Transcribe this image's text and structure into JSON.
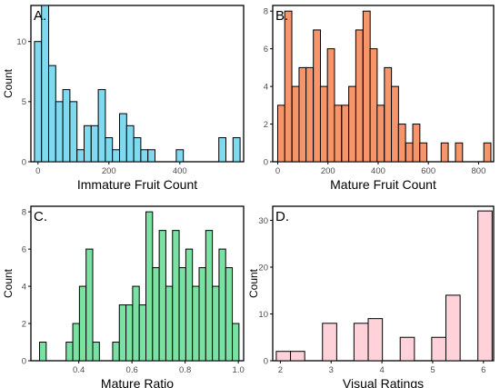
{
  "chart_data": [
    {
      "type": "bar",
      "panel": "A.",
      "title": "",
      "xlabel": "Immature Fruit Count",
      "ylabel": "Count",
      "color": "#7FD9EF",
      "xlim": [
        -20,
        580
      ],
      "ylim": [
        0,
        13
      ],
      "xticks": [
        0,
        200,
        400
      ],
      "yticks": [
        0,
        5,
        10
      ],
      "bin_width": 20,
      "bins": [
        {
          "x": 0,
          "count": 10
        },
        {
          "x": 20,
          "count": 13
        },
        {
          "x": 40,
          "count": 8
        },
        {
          "x": 60,
          "count": 5
        },
        {
          "x": 80,
          "count": 6
        },
        {
          "x": 100,
          "count": 5
        },
        {
          "x": 120,
          "count": 1
        },
        {
          "x": 140,
          "count": 3
        },
        {
          "x": 160,
          "count": 3
        },
        {
          "x": 180,
          "count": 6
        },
        {
          "x": 200,
          "count": 2
        },
        {
          "x": 220,
          "count": 1
        },
        {
          "x": 240,
          "count": 4
        },
        {
          "x": 260,
          "count": 3
        },
        {
          "x": 280,
          "count": 2
        },
        {
          "x": 300,
          "count": 1
        },
        {
          "x": 320,
          "count": 1
        },
        {
          "x": 400,
          "count": 1
        },
        {
          "x": 520,
          "count": 2
        },
        {
          "x": 560,
          "count": 2
        }
      ]
    },
    {
      "type": "bar",
      "panel": "B.",
      "title": "",
      "xlabel": "Mature Fruit Count",
      "ylabel": "",
      "color": "#F7956A",
      "xlim": [
        -20,
        860
      ],
      "ylim": [
        0,
        8.3
      ],
      "xticks": [
        0,
        200,
        400,
        600,
        800
      ],
      "yticks": [
        0,
        2,
        4,
        6,
        8
      ],
      "bin_width": 28.3,
      "bins": [
        {
          "x": 14,
          "count": 3
        },
        {
          "x": 42,
          "count": 8
        },
        {
          "x": 71,
          "count": 4
        },
        {
          "x": 99,
          "count": 5
        },
        {
          "x": 127,
          "count": 5
        },
        {
          "x": 156,
          "count": 7
        },
        {
          "x": 184,
          "count": 4
        },
        {
          "x": 212,
          "count": 6
        },
        {
          "x": 240,
          "count": 3
        },
        {
          "x": 269,
          "count": 3
        },
        {
          "x": 297,
          "count": 4
        },
        {
          "x": 325,
          "count": 7
        },
        {
          "x": 354,
          "count": 8
        },
        {
          "x": 382,
          "count": 6
        },
        {
          "x": 410,
          "count": 3
        },
        {
          "x": 439,
          "count": 5
        },
        {
          "x": 467,
          "count": 4
        },
        {
          "x": 495,
          "count": 2
        },
        {
          "x": 524,
          "count": 1
        },
        {
          "x": 552,
          "count": 2
        },
        {
          "x": 580,
          "count": 1
        },
        {
          "x": 665,
          "count": 1
        },
        {
          "x": 722,
          "count": 1
        },
        {
          "x": 835,
          "count": 1
        }
      ]
    },
    {
      "type": "bar",
      "panel": "C.",
      "title": "",
      "xlabel": "Mature Ratio",
      "ylabel": "Count",
      "color": "#79E2A2",
      "xlim": [
        0.22,
        1.02
      ],
      "ylim": [
        0,
        8.3
      ],
      "xticks": [
        0.4,
        0.6,
        0.8,
        1.0
      ],
      "xtick_labels": [
        "0.4",
        "0.6",
        "0.8",
        "1.0"
      ],
      "yticks": [
        0,
        2,
        4,
        6,
        8
      ],
      "bin_width": 0.025,
      "bins": [
        {
          "x": 0.265,
          "count": 1
        },
        {
          "x": 0.365,
          "count": 1
        },
        {
          "x": 0.39,
          "count": 2
        },
        {
          "x": 0.415,
          "count": 4
        },
        {
          "x": 0.44,
          "count": 6
        },
        {
          "x": 0.465,
          "count": 1
        },
        {
          "x": 0.54,
          "count": 1
        },
        {
          "x": 0.565,
          "count": 3
        },
        {
          "x": 0.59,
          "count": 3
        },
        {
          "x": 0.615,
          "count": 4
        },
        {
          "x": 0.64,
          "count": 3
        },
        {
          "x": 0.665,
          "count": 8
        },
        {
          "x": 0.69,
          "count": 5
        },
        {
          "x": 0.715,
          "count": 7
        },
        {
          "x": 0.74,
          "count": 4
        },
        {
          "x": 0.765,
          "count": 7
        },
        {
          "x": 0.79,
          "count": 5
        },
        {
          "x": 0.815,
          "count": 6
        },
        {
          "x": 0.84,
          "count": 4
        },
        {
          "x": 0.865,
          "count": 5
        },
        {
          "x": 0.89,
          "count": 7
        },
        {
          "x": 0.915,
          "count": 4
        },
        {
          "x": 0.94,
          "count": 6
        },
        {
          "x": 0.965,
          "count": 5
        },
        {
          "x": 0.99,
          "count": 2
        }
      ]
    },
    {
      "type": "bar",
      "panel": "D.",
      "title": "",
      "xlabel": "Visual Ratings",
      "ylabel": "Count",
      "color": "#FFD1D8",
      "xlim": [
        1.85,
        6.2
      ],
      "ylim": [
        0,
        33
      ],
      "xticks": [
        2,
        3,
        4,
        5,
        6
      ],
      "yticks": [
        0,
        10,
        20,
        30
      ],
      "bin_width": 0.28,
      "bins": [
        {
          "x": 2.06,
          "count": 2
        },
        {
          "x": 2.34,
          "count": 2
        },
        {
          "x": 2.97,
          "count": 8
        },
        {
          "x": 3.59,
          "count": 8
        },
        {
          "x": 3.87,
          "count": 9
        },
        {
          "x": 4.5,
          "count": 5
        },
        {
          "x": 5.12,
          "count": 5
        },
        {
          "x": 5.4,
          "count": 14
        },
        {
          "x": 6.03,
          "count": 32
        }
      ]
    }
  ]
}
